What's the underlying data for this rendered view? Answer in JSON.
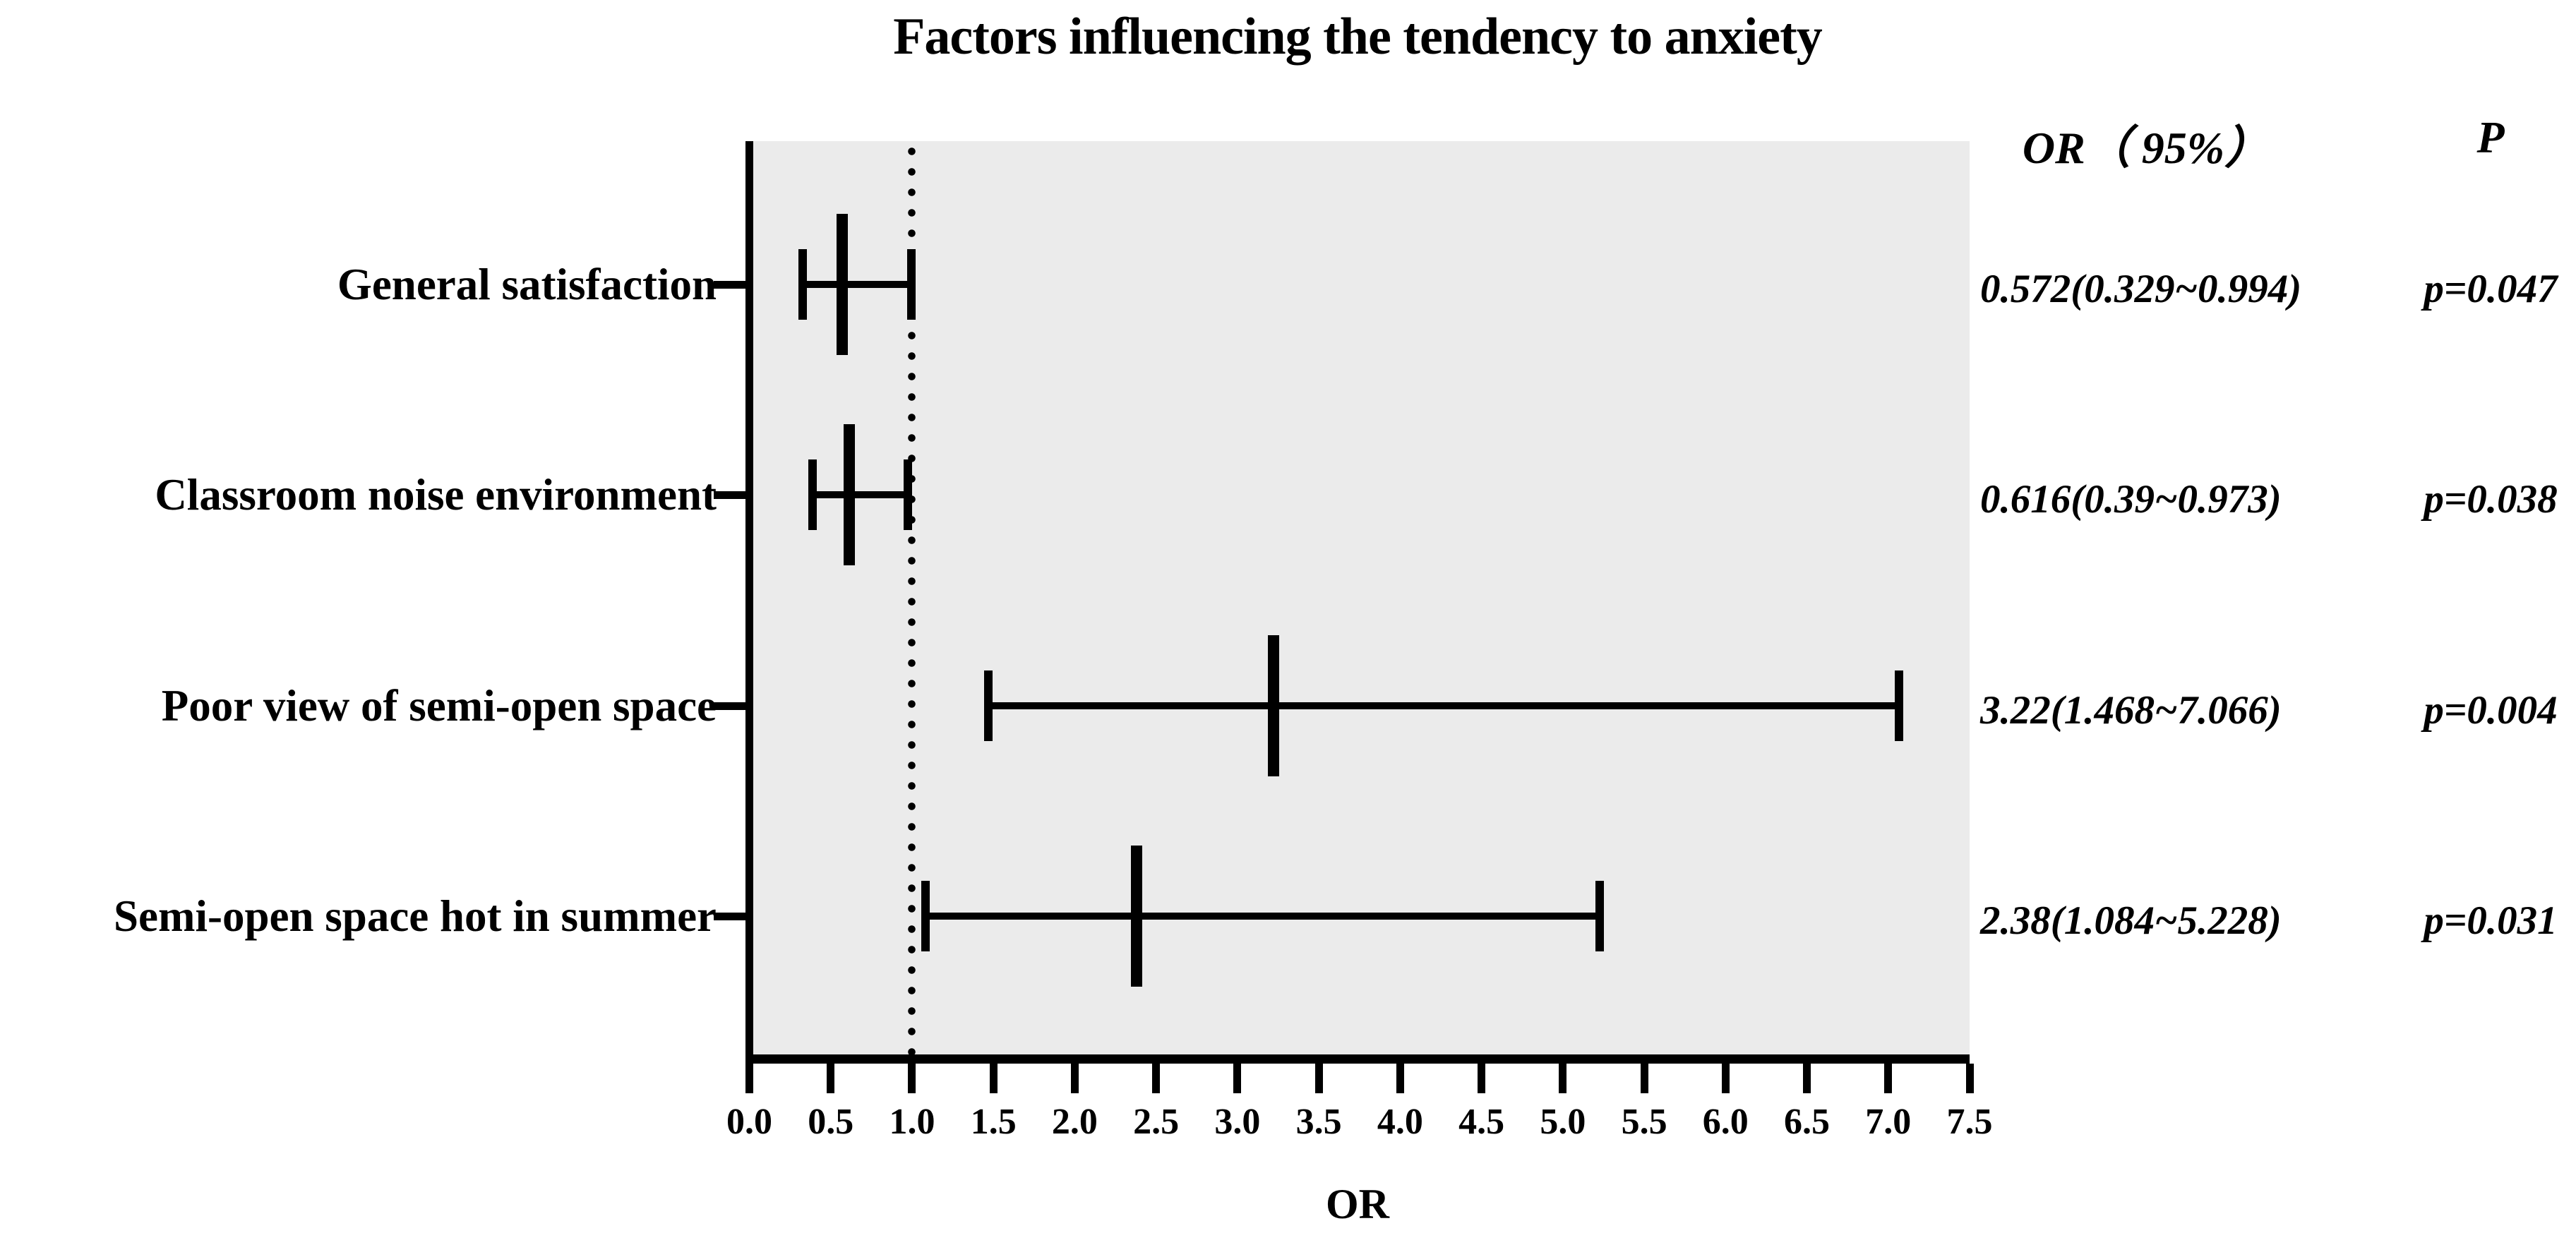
{
  "chart_data": {
    "type": "forest",
    "title": "Factors influencing the tendency to anxiety",
    "xlabel": "OR",
    "xlim": [
      0.0,
      7.5
    ],
    "xticks": [
      "0.0",
      "0.5",
      "1.0",
      "1.5",
      "2.0",
      "2.5",
      "3.0",
      "3.5",
      "4.0",
      "4.5",
      "5.0",
      "5.5",
      "6.0",
      "6.5",
      "7.0",
      "7.5"
    ],
    "reference_line_x": 1.0,
    "reference_line_style": "dotted",
    "grid": "off",
    "legend": "none",
    "columns": {
      "or_header": "OR（ 95%）",
      "p_header": "P"
    },
    "rows": [
      {
        "label": "General satisfaction",
        "or": 0.572,
        "ci_low": 0.329,
        "ci_high": 0.994,
        "or_text": "0.572(0.329~0.994)",
        "p_text": "p=0.047"
      },
      {
        "label": "Classroom noise environment",
        "or": 0.616,
        "ci_low": 0.39,
        "ci_high": 0.973,
        "or_text": "0.616(0.39~0.973)",
        "p_text": "p=0.038"
      },
      {
        "label": "Poor view of semi-open space",
        "or": 3.22,
        "ci_low": 1.468,
        "ci_high": 7.066,
        "or_text": "3.22(1.468~7.066)",
        "p_text": "p=0.004"
      },
      {
        "label": "Semi-open space hot in summer",
        "or": 2.38,
        "ci_low": 1.084,
        "ci_high": 5.228,
        "or_text": "2.38(1.084~5.228)",
        "p_text": "p=0.031"
      }
    ],
    "colors": {
      "page_bg": "#ffffff",
      "plot_bg": "#ebebeb",
      "ink": "#000000"
    }
  }
}
